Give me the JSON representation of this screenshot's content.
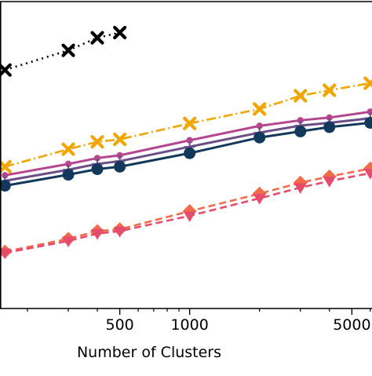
{
  "chart_data": {
    "type": "line",
    "xscale": "log",
    "xlabel": "Number of Clusters",
    "xlim": [
      150,
      6200
    ],
    "x_ticks": [
      {
        "value": 500,
        "label": "500"
      },
      {
        "value": 1000,
        "label": "1000"
      },
      {
        "value": 5000,
        "label": "5000"
      }
    ],
    "y_range_fraction": [
      0,
      1
    ],
    "grid": false,
    "series": [
      {
        "color": "#000000",
        "marker": "x",
        "line": "dotted",
        "points": [
          [
            160,
            0.777
          ],
          [
            300,
            0.841
          ],
          [
            400,
            0.882
          ],
          [
            500,
            0.899
          ]
        ]
      },
      {
        "color": "#f0a500",
        "marker": "x",
        "line": "dashdot",
        "points": [
          [
            160,
            0.462
          ],
          [
            300,
            0.519
          ],
          [
            400,
            0.543
          ],
          [
            500,
            0.551
          ],
          [
            1000,
            0.603
          ],
          [
            2000,
            0.65
          ],
          [
            3000,
            0.693
          ],
          [
            4000,
            0.711
          ],
          [
            6000,
            0.734
          ]
        ]
      },
      {
        "color": "#b5478e",
        "marker": "o-small",
        "line": "solid",
        "points": [
          [
            160,
            0.434
          ],
          [
            300,
            0.471
          ],
          [
            400,
            0.49
          ],
          [
            500,
            0.499
          ],
          [
            1000,
            0.548
          ],
          [
            2000,
            0.595
          ],
          [
            3000,
            0.613
          ],
          [
            4000,
            0.622
          ],
          [
            6000,
            0.641
          ]
        ]
      },
      {
        "color": "#6b4e86",
        "marker": "plus",
        "line": "solid",
        "points": [
          [
            160,
            0.416
          ],
          [
            300,
            0.452
          ],
          [
            400,
            0.471
          ],
          [
            500,
            0.48
          ],
          [
            1000,
            0.527
          ],
          [
            2000,
            0.573
          ],
          [
            3000,
            0.596
          ],
          [
            4000,
            0.605
          ],
          [
            6000,
            0.62
          ]
        ]
      },
      {
        "color": "#12395b",
        "marker": "o",
        "line": "solid",
        "points": [
          [
            160,
            0.4
          ],
          [
            300,
            0.436
          ],
          [
            400,
            0.454
          ],
          [
            500,
            0.462
          ],
          [
            1000,
            0.506
          ],
          [
            2000,
            0.557
          ],
          [
            3000,
            0.577
          ],
          [
            4000,
            0.591
          ],
          [
            6000,
            0.605
          ]
        ]
      },
      {
        "color": "#f26b4b",
        "marker": "diamond",
        "line": "dashed",
        "points": [
          [
            160,
            0.185
          ],
          [
            300,
            0.227
          ],
          [
            400,
            0.252
          ],
          [
            500,
            0.258
          ],
          [
            1000,
            0.317
          ],
          [
            2000,
            0.374
          ],
          [
            3000,
            0.41
          ],
          [
            4000,
            0.43
          ],
          [
            6000,
            0.456
          ]
        ]
      },
      {
        "color": "#e54b6b",
        "marker": "triangle-down",
        "line": "dashed",
        "points": [
          [
            160,
            0.181
          ],
          [
            300,
            0.22
          ],
          [
            400,
            0.244
          ],
          [
            500,
            0.252
          ],
          [
            1000,
            0.302
          ],
          [
            2000,
            0.359
          ],
          [
            3000,
            0.394
          ],
          [
            4000,
            0.415
          ],
          [
            6000,
            0.441
          ]
        ]
      }
    ]
  }
}
